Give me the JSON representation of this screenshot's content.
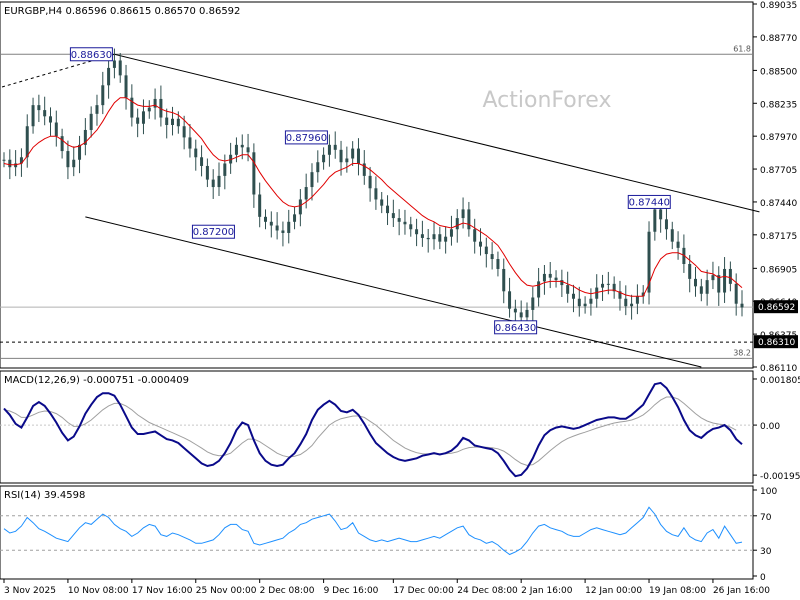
{
  "colors": {
    "price": "#2f4f4f",
    "ma": "#e00000",
    "macd": "#0a0a8a",
    "signal": "#a0a0a0",
    "rsi": "#1e90ff",
    "grid": "#c8c8c8",
    "border": "#000000",
    "current_price_bg": "#000000",
    "current_price_fg": "#ffffff"
  },
  "chart_data": [
    {
      "type": "line",
      "title": "EURGBP,H4  0.86596 0.86615 0.86570 0.86592",
      "watermark": "ActionForex",
      "y_ticks": [
        "0.89035",
        "0.88770",
        "0.88500",
        "0.88235",
        "0.87970",
        "0.87705",
        "0.87440",
        "0.87175",
        "0.86905",
        "0.86640",
        "0.86375",
        "0.86110"
      ],
      "ylim": [
        0.8611,
        0.89035
      ],
      "current_price": "0.86592",
      "support_level": "0.86310",
      "fib_upper_label": "61.8",
      "fib_lower_label": "38.2",
      "fib_upper_value": 0.8863,
      "fib_lower_value": 0.8618,
      "swing_labels": [
        {
          "text": "0.88630",
          "bar": 19,
          "value": 0.8863
        },
        {
          "text": "0.87960",
          "bar": 56,
          "value": 0.8796
        },
        {
          "text": "0.87200",
          "bar": 40,
          "value": 0.872
        },
        {
          "text": "0.86430",
          "bar": 92,
          "value": 0.8643
        },
        {
          "text": "0.87440",
          "bar": 115,
          "value": 0.8744
        }
      ],
      "series": [
        {
          "name": "EURGBP close",
          "values": [
            0.8778,
            0.8772,
            0.8775,
            0.878,
            0.8805,
            0.8822,
            0.8818,
            0.8813,
            0.8808,
            0.8797,
            0.8785,
            0.8772,
            0.8778,
            0.879,
            0.8802,
            0.8815,
            0.8822,
            0.8838,
            0.8852,
            0.8858,
            0.8846,
            0.8828,
            0.8812,
            0.8807,
            0.8817,
            0.882,
            0.8827,
            0.8812,
            0.8806,
            0.8811,
            0.8805,
            0.8796,
            0.8787,
            0.878,
            0.8773,
            0.8762,
            0.8756,
            0.8765,
            0.8775,
            0.8782,
            0.879,
            0.8788,
            0.8784,
            0.875,
            0.8732,
            0.8728,
            0.8725,
            0.8721,
            0.8719,
            0.8728,
            0.8734,
            0.8746,
            0.8756,
            0.8768,
            0.8776,
            0.8782,
            0.879,
            0.8786,
            0.8776,
            0.8779,
            0.8787,
            0.8775,
            0.8765,
            0.8755,
            0.8746,
            0.8741,
            0.8735,
            0.8731,
            0.8728,
            0.8726,
            0.8722,
            0.8718,
            0.8715,
            0.8714,
            0.8718,
            0.8712,
            0.8716,
            0.8722,
            0.8731,
            0.8738,
            0.8722,
            0.8712,
            0.8708,
            0.8702,
            0.8698,
            0.869,
            0.8672,
            0.8658,
            0.8655,
            0.8651,
            0.8657,
            0.8667,
            0.868,
            0.8686,
            0.8683,
            0.8681,
            0.8677,
            0.867,
            0.8666,
            0.866,
            0.8662,
            0.8666,
            0.8675,
            0.8678,
            0.8678,
            0.8672,
            0.8666,
            0.866,
            0.8662,
            0.8668,
            0.8671,
            0.872,
            0.8738,
            0.873,
            0.8722,
            0.8712,
            0.8707,
            0.8694,
            0.8682,
            0.8676,
            0.867,
            0.8681,
            0.8685,
            0.8671,
            0.869,
            0.8678,
            0.8662,
            0.8659
          ]
        },
        {
          "name": "Moving average",
          "values": [
            0.8775,
            0.8774,
            0.8774,
            0.8775,
            0.8781,
            0.8788,
            0.8792,
            0.8795,
            0.8797,
            0.8797,
            0.8794,
            0.879,
            0.8788,
            0.8789,
            0.8792,
            0.8797,
            0.8802,
            0.8809,
            0.8817,
            0.8824,
            0.8828,
            0.8828,
            0.8825,
            0.8822,
            0.8821,
            0.8821,
            0.8822,
            0.8819,
            0.8817,
            0.8816,
            0.8814,
            0.881,
            0.8805,
            0.88,
            0.8795,
            0.8788,
            0.8782,
            0.8778,
            0.8777,
            0.8778,
            0.878,
            0.8782,
            0.8782,
            0.8776,
            0.8768,
            0.8761,
            0.8755,
            0.8749,
            0.8744,
            0.8741,
            0.874,
            0.8741,
            0.8744,
            0.8748,
            0.8753,
            0.8758,
            0.8764,
            0.8768,
            0.877,
            0.8772,
            0.8775,
            0.8775,
            0.8773,
            0.877,
            0.8766,
            0.8762,
            0.8757,
            0.8753,
            0.8749,
            0.8745,
            0.8741,
            0.8737,
            0.8733,
            0.873,
            0.8728,
            0.8725,
            0.8724,
            0.8723,
            0.8725,
            0.8727,
            0.8726,
            0.8723,
            0.872,
            0.8717,
            0.8713,
            0.8709,
            0.8702,
            0.8694,
            0.8687,
            0.8681,
            0.8677,
            0.8676,
            0.8677,
            0.8679,
            0.868,
            0.868,
            0.868,
            0.8678,
            0.8676,
            0.8673,
            0.8671,
            0.867,
            0.8671,
            0.8672,
            0.8673,
            0.8673,
            0.8671,
            0.8669,
            0.8668,
            0.8668,
            0.8668,
            0.8678,
            0.869,
            0.8698,
            0.8702,
            0.8703,
            0.8703,
            0.8701,
            0.8697,
            0.8693,
            0.8688,
            0.8687,
            0.8686,
            0.8683,
            0.8684,
            0.8683,
            0.8679,
            0.8675
          ]
        }
      ],
      "channel_upper": [
        [
          19,
          0.8863
        ],
        [
          130,
          0.8736
        ]
      ],
      "channel_lower": [
        [
          14,
          0.8732
        ],
        [
          120,
          0.8611
        ]
      ]
    },
    {
      "type": "line",
      "title": "MACD(12,26,9) -0.000751 -0.000409",
      "y_ticks": [
        "0.001805",
        "0.00",
        "-0.001959"
      ],
      "ylim": [
        -0.00215,
        0.002
      ],
      "series": [
        {
          "name": "MACD",
          "values": [
            0.00065,
            0.0004,
            5e-05,
            -0.0001,
            0.0003,
            0.00075,
            0.0009,
            0.00075,
            0.00045,
            0.0001,
            -0.0003,
            -0.0006,
            -0.00045,
            -5e-05,
            0.00045,
            0.0008,
            0.0011,
            0.00125,
            0.00125,
            0.00115,
            0.0008,
            0.00035,
            -0.0001,
            -0.00035,
            -0.00035,
            -0.0003,
            -0.00025,
            -0.0004,
            -0.00055,
            -0.0006,
            -0.0007,
            -0.0009,
            -0.0011,
            -0.0013,
            -0.0015,
            -0.0016,
            -0.00155,
            -0.0014,
            -0.0011,
            -0.0007,
            -0.0002,
            0.0001,
            0.0,
            -0.0006,
            -0.0011,
            -0.0014,
            -0.00155,
            -0.0016,
            -0.00155,
            -0.0013,
            -0.0011,
            -0.00075,
            -0.00035,
            0.0002,
            0.0006,
            0.0008,
            0.00095,
            0.0008,
            0.00055,
            0.0005,
            0.0006,
            0.0004,
            5e-05,
            -0.00035,
            -0.0007,
            -0.0009,
            -0.0011,
            -0.00125,
            -0.00135,
            -0.0014,
            -0.00135,
            -0.0013,
            -0.0012,
            -0.00115,
            -0.0011,
            -0.00115,
            -0.0011,
            -0.001,
            -0.0008,
            -0.0005,
            -0.0006,
            -0.0008,
            -0.00085,
            -0.0009,
            -0.00095,
            -0.0011,
            -0.0014,
            -0.00175,
            -0.002,
            -0.00195,
            -0.0017,
            -0.0013,
            -0.0008,
            -0.0004,
            -0.0002,
            -0.0001,
            -5e-05,
            -0.0001,
            -0.00015,
            -0.0001,
            0.0,
            0.0001,
            0.0002,
            0.00025,
            0.0003,
            0.0003,
            0.00025,
            0.00025,
            0.0004,
            0.0006,
            0.0008,
            0.0012,
            0.0016,
            0.00165,
            0.00145,
            0.0011,
            0.0007,
            0.0002,
            -0.0002,
            -0.0004,
            -0.0005,
            -0.0003,
            -0.00015,
            -0.0001,
            0.0,
            -0.0002,
            -0.00055,
            -0.00075
          ]
        },
        {
          "name": "Signal",
          "values": [
            0.0006,
            0.00055,
            0.00045,
            0.0003,
            0.0003,
            0.0004,
            0.0005,
            0.00055,
            0.00053,
            0.00045,
            0.0003,
            0.0001,
            -5e-05,
            -5e-05,
            5e-05,
            0.0002,
            0.0004,
            0.0006,
            0.00075,
            0.00085,
            0.00085,
            0.00075,
            0.0006,
            0.0004,
            0.00025,
            0.0001,
            0.0,
            -0.0001,
            -0.0002,
            -0.0003,
            -0.0004,
            -0.0005,
            -0.00062,
            -0.00076,
            -0.0009,
            -0.00105,
            -0.00115,
            -0.0012,
            -0.00118,
            -0.0011,
            -0.0009,
            -0.0007,
            -0.00055,
            -0.00055,
            -0.00065,
            -0.0008,
            -0.00095,
            -0.0011,
            -0.0012,
            -0.00125,
            -0.00122,
            -0.00115,
            -0.001,
            -0.0008,
            -0.0005,
            -0.00025,
            0.0,
            0.00015,
            0.00025,
            0.0003,
            0.00035,
            0.00036,
            0.0003,
            0.00015,
            0.0,
            -0.0002,
            -0.0004,
            -0.0006,
            -0.00075,
            -0.0009,
            -0.001,
            -0.00108,
            -0.00112,
            -0.00113,
            -0.00113,
            -0.00113,
            -0.00112,
            -0.0011,
            -0.00105,
            -0.00095,
            -0.00088,
            -0.00086,
            -0.00086,
            -0.00087,
            -0.00089,
            -0.00093,
            -0.00102,
            -0.00117,
            -0.00135,
            -0.0015,
            -0.00158,
            -0.00155,
            -0.0014,
            -0.0012,
            -0.001,
            -0.00082,
            -0.00065,
            -0.00052,
            -0.00043,
            -0.00035,
            -0.00028,
            -0.0002,
            -0.00012,
            -5e-05,
            2e-05,
            8e-05,
            0.00012,
            0.00015,
            0.0002,
            0.00028,
            0.0004,
            0.00058,
            0.0008,
            0.00098,
            0.0011,
            0.0011,
            0.00102,
            0.00085,
            0.00065,
            0.00045,
            0.00028,
            0.00016,
            8e-05,
            4e-05,
            1e-05,
            -8e-05,
            -0.0002
          ]
        }
      ]
    },
    {
      "type": "line",
      "title": "RSI(14) 39.4598",
      "y_ticks": [
        "100",
        "70",
        "30",
        "0"
      ],
      "ylim": [
        0,
        100
      ],
      "levels": [
        70,
        30
      ],
      "series": [
        {
          "name": "RSI",
          "values": [
            55,
            50,
            52,
            58,
            68,
            62,
            55,
            52,
            48,
            44,
            42,
            40,
            48,
            56,
            62,
            60,
            66,
            72,
            68,
            60,
            55,
            52,
            46,
            50,
            56,
            60,
            58,
            48,
            46,
            50,
            48,
            45,
            42,
            38,
            38,
            40,
            42,
            48,
            56,
            60,
            60,
            54,
            52,
            38,
            36,
            38,
            40,
            42,
            44,
            50,
            54,
            60,
            62,
            66,
            68,
            70,
            72,
            64,
            54,
            56,
            62,
            50,
            46,
            42,
            40,
            42,
            40,
            42,
            44,
            42,
            40,
            40,
            42,
            44,
            46,
            44,
            48,
            52,
            56,
            58,
            48,
            44,
            42,
            38,
            40,
            36,
            30,
            25,
            28,
            32,
            40,
            50,
            58,
            60,
            56,
            54,
            52,
            48,
            46,
            46,
            50,
            54,
            56,
            54,
            52,
            50,
            48,
            50,
            56,
            62,
            68,
            80,
            72,
            60,
            52,
            48,
            46,
            56,
            46,
            42,
            40,
            50,
            54,
            44,
            58,
            48,
            38,
            39.46
          ]
        }
      ]
    }
  ],
  "x_axis": {
    "labels": [
      "3 Nov 2025",
      "10 Nov 08:00",
      "17 Nov 16:00",
      "25 Nov 00:00",
      "2 Dec 08:00",
      "9 Dec 16:00",
      "17 Dec 00:00",
      "24 Dec 08:00",
      "2 Jan 16:00",
      "12 Jan 00:00",
      "19 Jan 08:00",
      "26 Jan 16:00"
    ]
  }
}
